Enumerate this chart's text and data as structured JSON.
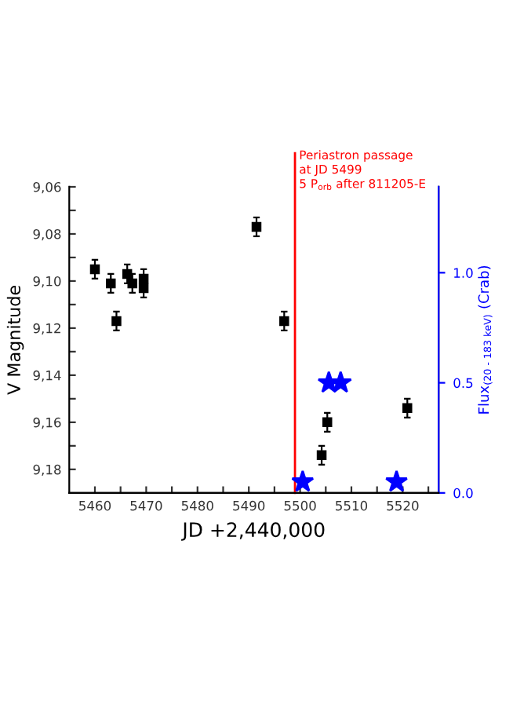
{
  "chart_data": {
    "type": "scatter",
    "xlabel": "JD +2,440,000",
    "ylabel": "V Magnitude",
    "y2label": "Flux$_{(20 - 183 keV)}$ (Crab)",
    "xlim": [
      5455,
      5527
    ],
    "xticks": [
      5460,
      {
        "value": 5465,
        "label": null
      },
      5470,
      {
        "value": 5475,
        "label": null
      },
      5480,
      {
        "value": 5485,
        "label": null
      },
      5490,
      {
        "value": 5495,
        "label": null
      },
      5500,
      {
        "value": 5505,
        "label": null
      },
      5510,
      {
        "value": 5515,
        "label": null
      },
      5520,
      {
        "value": 5525,
        "label": null
      }
    ],
    "ylim": [
      9.19,
      9.06
    ],
    "yticks": [
      {
        "value": 9.06,
        "label": "9,06"
      },
      {
        "value": 9.07,
        "label": null
      },
      {
        "value": 9.08,
        "label": "9,08"
      },
      {
        "value": 9.09,
        "label": null
      },
      {
        "value": 9.1,
        "label": "9,10"
      },
      {
        "value": 9.11,
        "label": null
      },
      {
        "value": 9.12,
        "label": "9,12"
      },
      {
        "value": 9.13,
        "label": null
      },
      {
        "value": 9.14,
        "label": "9,14"
      },
      {
        "value": 9.15,
        "label": null
      },
      {
        "value": 9.16,
        "label": "9,16"
      },
      {
        "value": 9.17,
        "label": null
      },
      {
        "value": 9.18,
        "label": "9,18"
      }
    ],
    "y2lim": [
      0,
      1.39
    ],
    "y2ticks": [
      {
        "value": 0,
        "label": "0.0"
      },
      0.5,
      {
        "value": 1,
        "label": "1.0"
      }
    ],
    "series": [
      {
        "type": "scatter",
        "color": "#000000",
        "marker": "square",
        "x": [
          5460.0,
          5463.1,
          5464.2,
          5466.3,
          5467.3,
          5469.5,
          5469.5,
          5491.5,
          5496.9,
          5504.2,
          5505.3,
          5520.9
        ],
        "values": [
          9.095,
          9.101,
          9.117,
          9.097,
          9.101,
          9.099,
          9.103,
          9.077,
          9.117,
          9.174,
          9.16,
          9.154
        ],
        "errors": [
          0.004,
          0.004,
          0.004,
          0.004,
          0.004,
          0.004,
          0.004,
          0.004,
          0.004,
          0.004,
          0.004,
          0.004
        ]
      },
      {
        "type": "scatter",
        "color": "#0000ff",
        "marker": "star",
        "axis": "y2",
        "x": [
          5500.5,
          5505.6,
          5507.9,
          5518.8
        ],
        "values": [
          0.05,
          0.5,
          0.5,
          0.05
        ]
      }
    ],
    "ref_lines": [
      {
        "axis": "x",
        "value": 5499,
        "label": "Periastron passage\nat JD 5499\n5 P$_{orb}$ after 811205-E",
        "color": "#ff0000"
      }
    ],
    "grid": false,
    "legend": false
  }
}
